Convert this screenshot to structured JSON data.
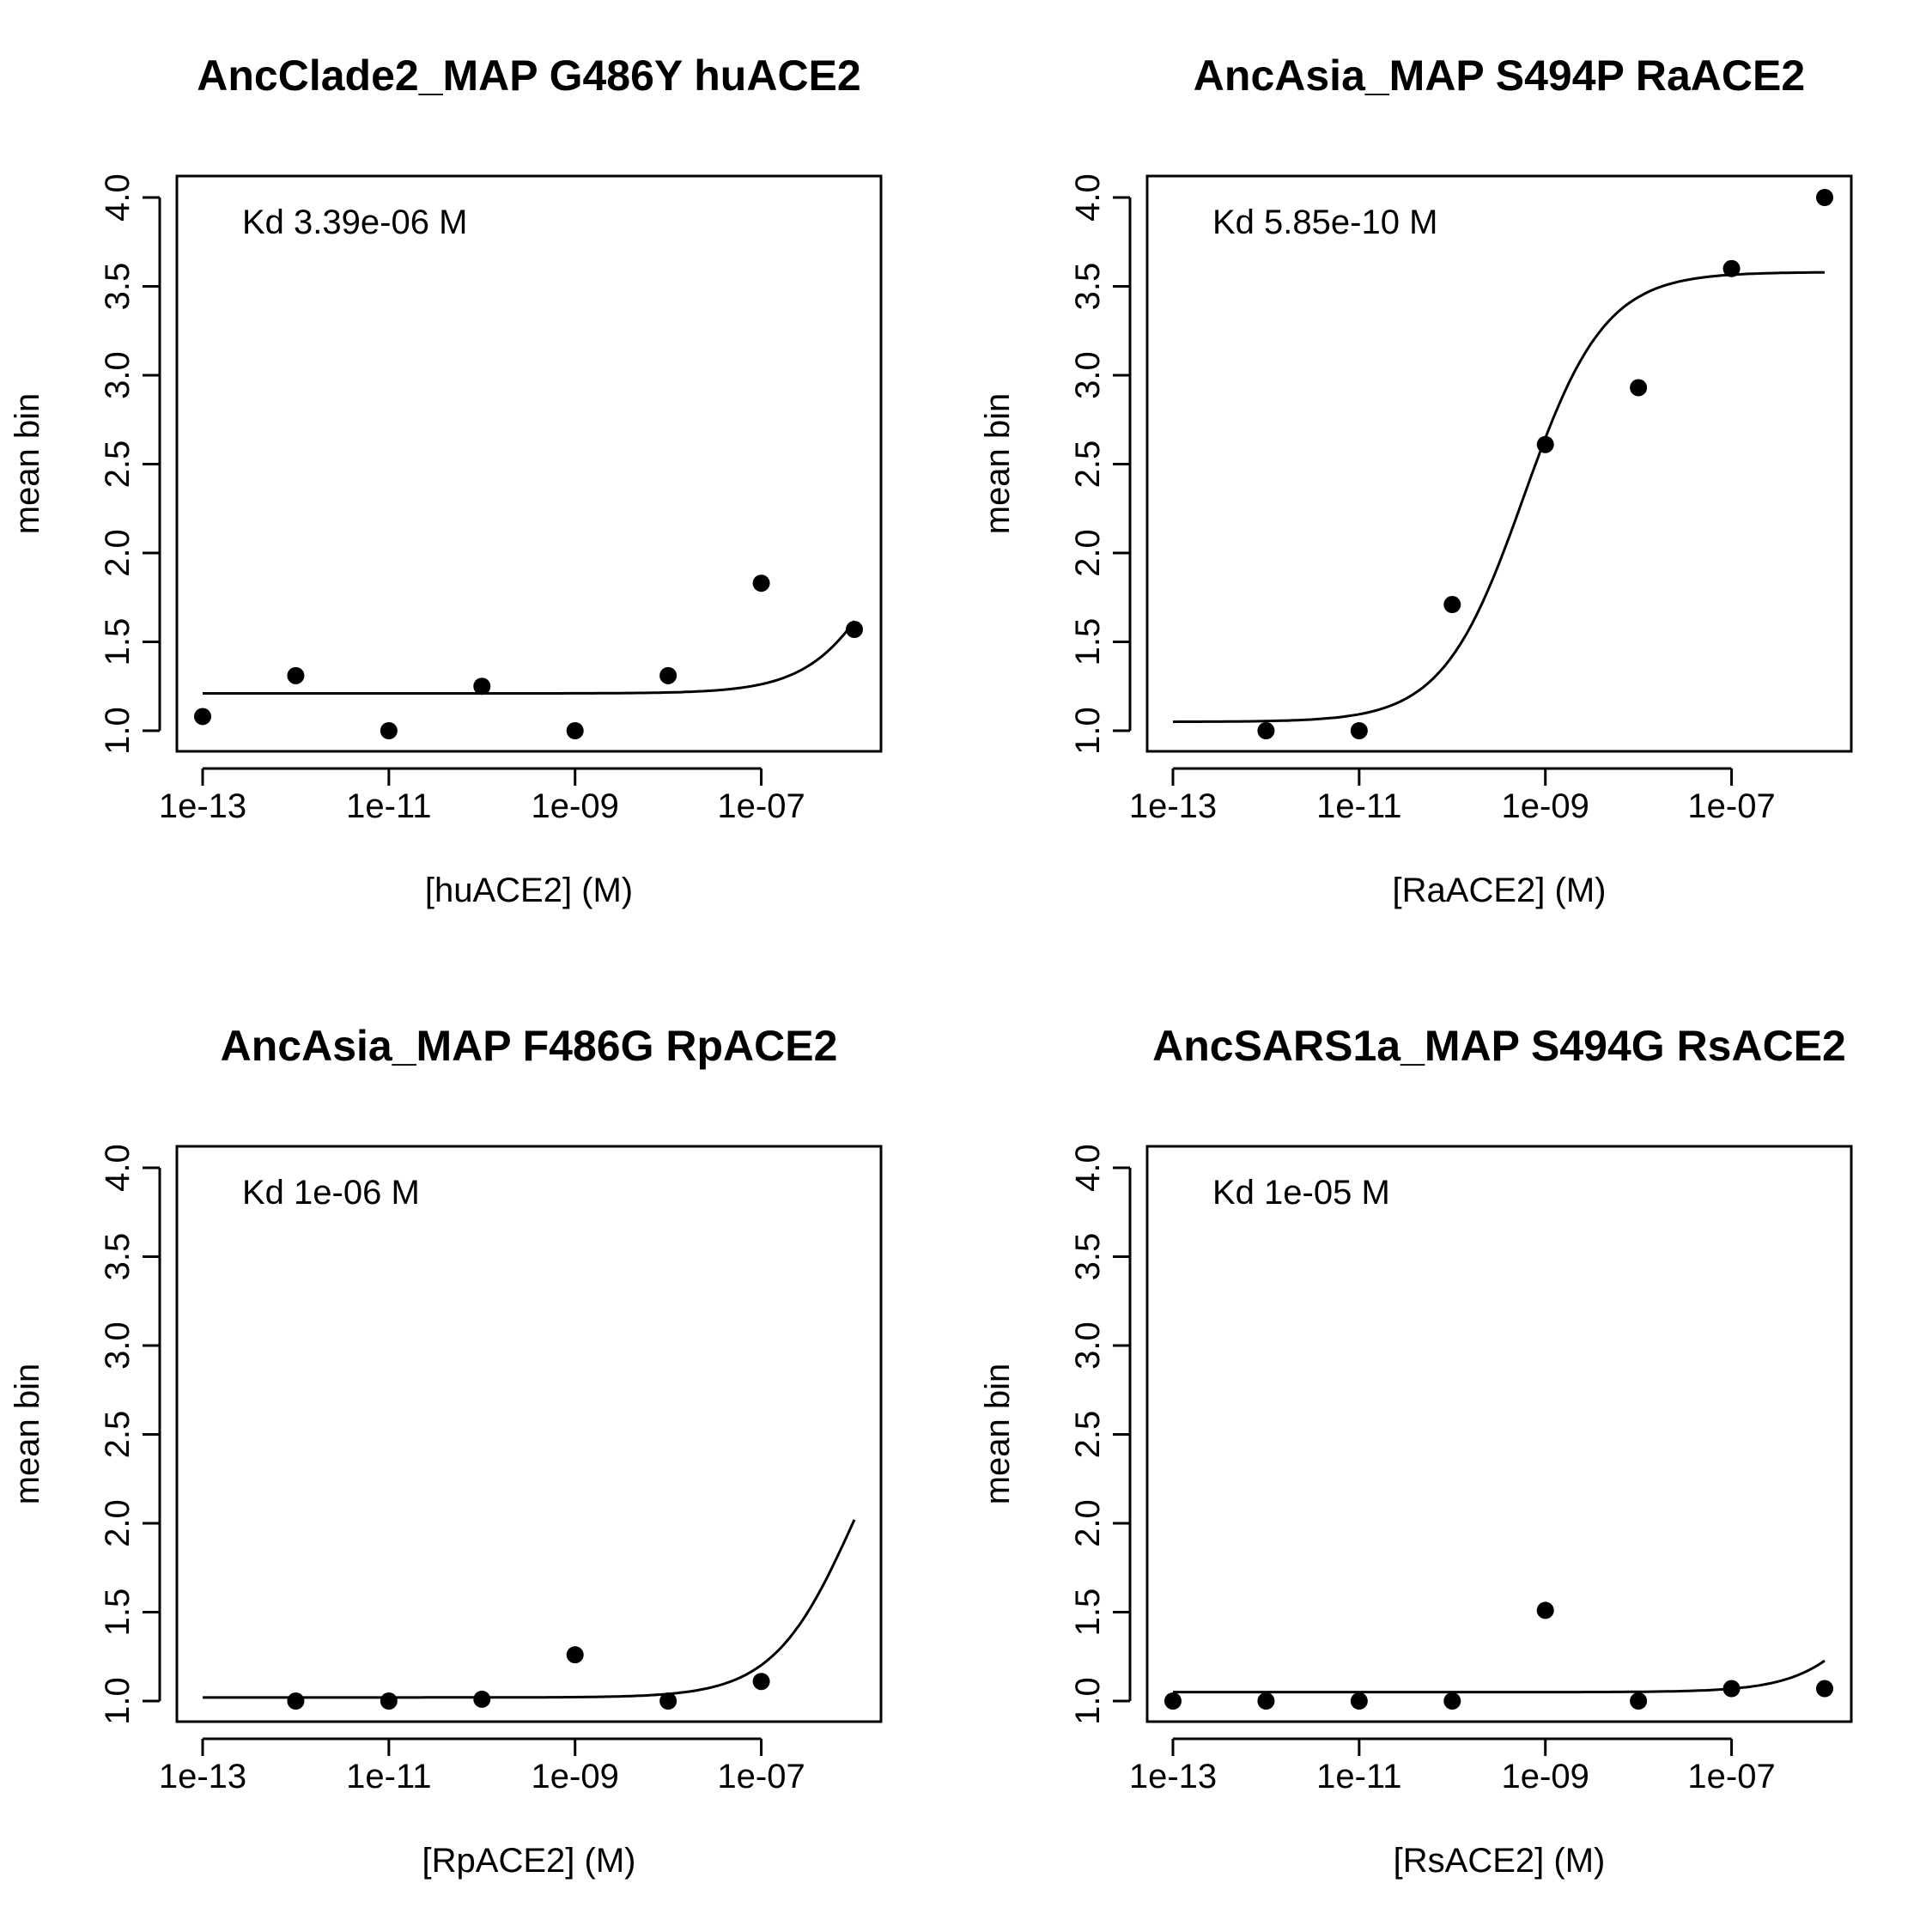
{
  "chart_data": [
    {
      "type": "scatter",
      "title": "AncClade2_MAP G486Y huACE2",
      "xlabel": "[huACE2] (M)",
      "ylabel": "mean bin",
      "annotation": "Kd 3.39e-06 M",
      "x_scale": "log10",
      "xlim": [
        1e-13,
        1e-06
      ],
      "ylim": [
        1.0,
        4.0
      ],
      "x_ticks": [
        "1e-13",
        "1e-11",
        "1e-09",
        "1e-07"
      ],
      "y_ticks": [
        "1.0",
        "1.5",
        "2.0",
        "2.5",
        "3.0",
        "3.5",
        "4.0"
      ],
      "points": {
        "x": [
          1e-13,
          1e-12,
          1e-11,
          1e-10,
          1e-09,
          1e-08,
          1e-07,
          1e-06
        ],
        "y": [
          1.08,
          1.31,
          1.0,
          1.25,
          1.0,
          1.31,
          1.83,
          1.57
        ]
      },
      "fit": {
        "kd": 3.39e-06,
        "bottom": 1.21,
        "top": 3.0
      },
      "grid": false,
      "legend": "none"
    },
    {
      "type": "scatter",
      "title": "AncAsia_MAP S494P RaACE2",
      "xlabel": "[RaACE2] (M)",
      "ylabel": "mean bin",
      "annotation": "Kd 5.85e-10 M",
      "x_scale": "log10",
      "xlim": [
        1e-13,
        1e-06
      ],
      "ylim": [
        1.0,
        4.0
      ],
      "x_ticks": [
        "1e-13",
        "1e-11",
        "1e-09",
        "1e-07"
      ],
      "y_ticks": [
        "1.0",
        "1.5",
        "2.0",
        "2.5",
        "3.0",
        "3.5",
        "4.0"
      ],
      "points": {
        "x": [
          1e-12,
          1e-11,
          1e-10,
          1e-09,
          1e-08,
          1e-07,
          1e-06
        ],
        "y": [
          1.0,
          1.0,
          1.71,
          2.61,
          2.93,
          3.6,
          4.0
        ]
      },
      "fit": {
        "kd": 5.85e-10,
        "bottom": 1.05,
        "top": 3.58
      },
      "grid": false,
      "legend": "none"
    },
    {
      "type": "scatter",
      "title": "AncAsia_MAP F486G RpACE2",
      "xlabel": "[RpACE2] (M)",
      "ylabel": "mean bin",
      "annotation": "Kd 1e-06 M",
      "x_scale": "log10",
      "xlim": [
        1e-13,
        1e-06
      ],
      "ylim": [
        1.0,
        4.0
      ],
      "x_ticks": [
        "1e-13",
        "1e-11",
        "1e-09",
        "1e-07"
      ],
      "y_ticks": [
        "1.0",
        "1.5",
        "2.0",
        "2.5",
        "3.0",
        "3.5",
        "4.0"
      ],
      "points": {
        "x": [
          1e-12,
          1e-11,
          1e-10,
          1e-09,
          1e-08,
          1e-07
        ],
        "y": [
          1.0,
          1.0,
          1.01,
          1.26,
          1.0,
          1.11
        ]
      },
      "fit": {
        "kd": 1e-06,
        "bottom": 1.02,
        "top": 3.02
      },
      "grid": false,
      "legend": "none"
    },
    {
      "type": "scatter",
      "title": "AncSARS1a_MAP S494G RsACE2",
      "xlabel": "[RsACE2] (M)",
      "ylabel": "mean bin",
      "annotation": "Kd 1e-05 M",
      "x_scale": "log10",
      "xlim": [
        1e-13,
        1e-06
      ],
      "ylim": [
        1.0,
        4.0
      ],
      "x_ticks": [
        "1e-13",
        "1e-11",
        "1e-09",
        "1e-07"
      ],
      "y_ticks": [
        "1.0",
        "1.5",
        "2.0",
        "2.5",
        "3.0",
        "3.5",
        "4.0"
      ],
      "points": {
        "x": [
          1e-13,
          1e-12,
          1e-11,
          1e-10,
          1e-09,
          1e-08,
          1e-07,
          1e-06
        ],
        "y": [
          1.0,
          1.0,
          1.0,
          1.0,
          1.51,
          1.0,
          1.07,
          1.07
        ]
      },
      "fit": {
        "kd": 1e-05,
        "bottom": 1.05,
        "top": 3.0
      },
      "grid": false,
      "legend": "none"
    }
  ]
}
